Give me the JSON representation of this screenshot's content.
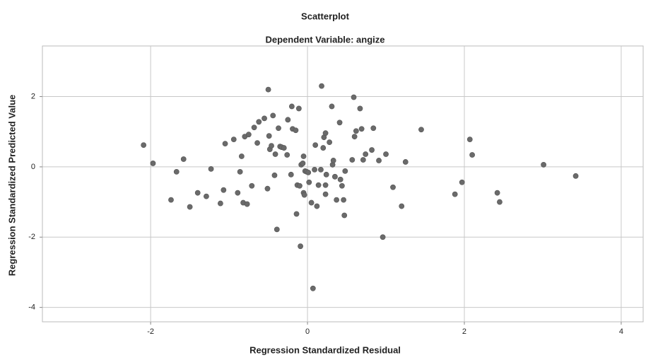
{
  "chart_data": {
    "type": "scatter",
    "title": "Scatterplot",
    "subtitle": "Dependent Variable: angize",
    "x_label": "Regression Standardized Residual",
    "y_label": "Regression Standardized Predicted Value",
    "color": "#6a6a6a",
    "grid": true,
    "xlim": [
      -3.38,
      4.28
    ],
    "ylim": [
      -4.41,
      3.44
    ],
    "xticks": [
      -2,
      0,
      2,
      4
    ],
    "yticks": [
      -4,
      -2,
      0,
      2
    ],
    "x": [
      -2.09,
      -1.97,
      -1.74,
      -1.67,
      -1.58,
      -1.5,
      -1.4,
      -1.29,
      -1.23,
      -1.11,
      -1.07,
      -1.05,
      -0.94,
      -0.89,
      -0.86,
      -0.84,
      -0.82,
      -0.8,
      -0.77,
      -0.75,
      -0.71,
      -0.68,
      -0.64,
      -0.62,
      -0.55,
      -0.51,
      -0.5,
      -0.49,
      -0.48,
      -0.46,
      -0.44,
      -0.42,
      -0.41,
      -0.39,
      -0.37,
      -0.35,
      -0.33,
      -0.3,
      -0.26,
      -0.25,
      -0.21,
      -0.2,
      -0.19,
      -0.15,
      -0.14,
      -0.13,
      -0.11,
      -0.1,
      -0.09,
      -0.08,
      -0.06,
      -0.05,
      -0.05,
      -0.04,
      -0.03,
      -0.01,
      0.01,
      0.02,
      0.05,
      0.07,
      0.09,
      0.1,
      0.12,
      0.14,
      0.17,
      0.18,
      0.2,
      0.21,
      0.23,
      0.23,
      0.23,
      0.24,
      0.28,
      0.31,
      0.32,
      0.33,
      0.35,
      0.37,
      0.41,
      0.42,
      0.44,
      0.46,
      0.47,
      0.48,
      0.57,
      0.59,
      0.6,
      0.62,
      0.67,
      0.69,
      0.71,
      0.74,
      0.82,
      0.84,
      0.91,
      0.96,
      1.0,
      1.09,
      1.2,
      1.25,
      1.45,
      1.88,
      1.97,
      2.07,
      2.1,
      2.42,
      2.45,
      3.01,
      3.42
    ],
    "y": [
      0.62,
      0.1,
      -0.94,
      -0.14,
      0.22,
      -1.14,
      -0.74,
      -0.84,
      -0.06,
      -1.04,
      -0.66,
      0.66,
      0.78,
      -0.74,
      -0.14,
      0.3,
      -1.02,
      0.86,
      -1.06,
      0.92,
      -0.54,
      1.12,
      0.68,
      1.28,
      1.38,
      -0.62,
      2.2,
      0.88,
      0.5,
      0.6,
      1.46,
      -0.24,
      0.36,
      -1.78,
      1.1,
      0.58,
      0.56,
      0.54,
      0.34,
      1.34,
      -0.22,
      1.72,
      1.08,
      1.04,
      -1.34,
      -0.52,
      1.66,
      -0.54,
      -2.26,
      0.06,
      0.1,
      -0.74,
      0.3,
      -0.8,
      -0.12,
      -0.14,
      -0.16,
      -0.44,
      -1.02,
      -3.46,
      -0.08,
      0.62,
      -1.12,
      -0.52,
      -0.08,
      2.3,
      0.54,
      0.84,
      0.96,
      -0.78,
      -0.52,
      -0.22,
      0.7,
      1.72,
      0.06,
      0.18,
      -0.28,
      -0.94,
      1.26,
      -0.36,
      -0.54,
      -0.94,
      -1.38,
      -0.12,
      0.2,
      1.98,
      0.86,
      1.02,
      1.66,
      1.08,
      0.2,
      0.36,
      0.48,
      1.1,
      0.18,
      -2.0,
      0.36,
      -0.58,
      -1.12,
      0.14,
      1.06,
      -0.78,
      -0.44,
      0.78,
      0.34,
      -0.74,
      -1.0,
      0.06,
      -0.26
    ]
  }
}
